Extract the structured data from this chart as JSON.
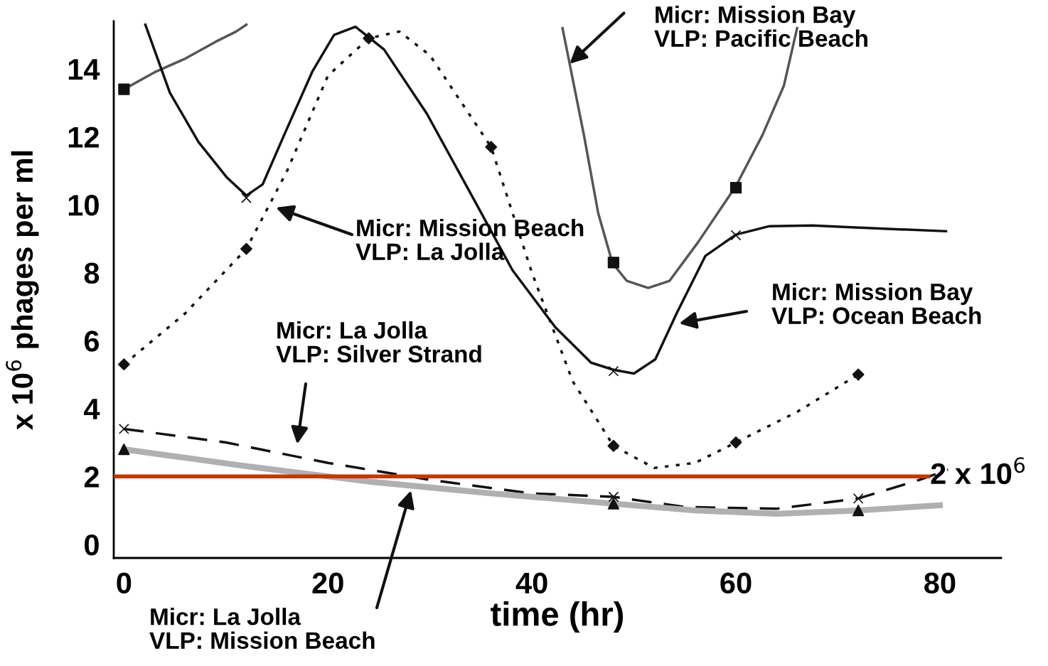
{
  "chart_data": {
    "type": "line",
    "xlabel": "time (hr)",
    "ylabel": "x 10$^{6}$ phages per ml",
    "xlim": [
      -1,
      86
    ],
    "ylim": [
      -0.4,
      15.4
    ],
    "xticks": [
      0,
      20,
      40,
      60,
      80
    ],
    "yticks": [
      0,
      2,
      4,
      6,
      8,
      10,
      12,
      14
    ],
    "grid": false,
    "legend": false,
    "series": [
      {
        "color": "#555555",
        "line_style": "solid",
        "x": [
          0,
          3,
          6,
          9,
          11,
          12,
          null,
          43,
          43.7,
          45.1,
          46.5,
          47.9,
          49.3,
          51.4,
          53.5,
          56.3,
          60,
          62.6,
          64.7,
          66
        ],
        "values": [
          13.4,
          13.9,
          14.3,
          14.8,
          15.1,
          15.3,
          null,
          15.2,
          14.15,
          12.05,
          9.75,
          8.28,
          7.76,
          7.55,
          7.76,
          8.9,
          10.55,
          12.05,
          13.5,
          15.2
        ]
      },
      {
        "type": "scatter",
        "color": "#111111",
        "marker": "square",
        "x": [
          0,
          48,
          60
        ],
        "values": [
          13.4,
          8.3,
          10.5
        ]
      },
      {
        "color": "#111111",
        "line_style": "solid",
        "x": [
          2.1,
          4.5,
          7.3,
          10.1,
          12,
          13.6,
          15.7,
          18.5,
          20.6,
          22.7,
          25.5,
          29.7,
          33.9,
          38.1,
          42.3,
          45.8,
          48,
          50,
          52.1,
          54.2,
          57,
          60,
          63.3,
          67.5,
          71.7,
          80.6
        ],
        "values": [
          15.3,
          13.3,
          11.85,
          10.8,
          10.27,
          10.6,
          12.05,
          13.94,
          15.0,
          15.24,
          14.57,
          12.68,
          10.38,
          8.07,
          6.39,
          5.35,
          5.14,
          5.03,
          5.45,
          6.81,
          8.49,
          9.12,
          9.37,
          9.39,
          9.33,
          9.22
        ]
      },
      {
        "type": "scatter",
        "color": "#111111",
        "marker": "cross",
        "x": [
          12,
          48,
          60
        ],
        "values": [
          10.2,
          5.1,
          9.1
        ]
      },
      {
        "color": "#111111",
        "line_style": "dotted",
        "x": [
          0,
          6,
          12,
          16,
          20,
          24,
          27,
          30,
          36,
          40,
          44,
          48,
          52,
          56,
          60,
          66,
          72
        ],
        "values": [
          5.3,
          6.8,
          8.7,
          11,
          13.8,
          14.9,
          15.1,
          14.4,
          11.7,
          8.0,
          4.8,
          2.9,
          2.25,
          2.4,
          3.0,
          3.9,
          5.0
        ]
      },
      {
        "type": "scatter",
        "color": "#111111",
        "marker": "diamond",
        "x": [
          0,
          12,
          24,
          36,
          48,
          60,
          72
        ],
        "values": [
          5.3,
          8.7,
          14.9,
          11.7,
          2.9,
          3.0,
          5.0
        ]
      },
      {
        "color": "#111111",
        "line_style": "dashed",
        "x": [
          0,
          10,
          20,
          30,
          40,
          48,
          55,
          64,
          72,
          78,
          80.8
        ],
        "values": [
          3.4,
          3.0,
          2.4,
          1.9,
          1.5,
          1.4,
          1.1,
          1.05,
          1.35,
          1.9,
          2.2
        ]
      },
      {
        "type": "scatter",
        "color": "#111111",
        "marker": "cross",
        "x": [
          0,
          48,
          72
        ],
        "values": [
          3.4,
          1.4,
          1.35
        ]
      },
      {
        "color": "#b0b0b0",
        "line_style": "solid",
        "x": [
          0,
          12,
          24,
          36,
          48,
          56,
          64,
          72,
          80
        ],
        "values": [
          2.8,
          2.3,
          1.85,
          1.5,
          1.2,
          1.0,
          0.9,
          1.0,
          1.15
        ]
      },
      {
        "type": "scatter",
        "color": "#111111",
        "marker": "triangle",
        "x": [
          0,
          48,
          72
        ],
        "values": [
          2.8,
          1.2,
          1.0
        ]
      }
    ],
    "ref_lines": [
      {
        "axis": "y",
        "value": 2,
        "label": "2 x 10$^{6}$",
        "color": "#cc3300",
        "line_style": "solid"
      }
    ],
    "annotations": [
      {
        "text": "Micr: Mission Bay\nVLP: Pacific Beach",
        "x": 43.7,
        "y": 14.15
      },
      "Micr: Mission Beach\nVLP: La Jolla",
      "Micr: Mission Bay\nVLP: Ocean Beach",
      "Micr: La Jolla\nVLP: Silver Strand",
      "Micr: La Jolla\nVLP: Mission Beach"
    ]
  }
}
